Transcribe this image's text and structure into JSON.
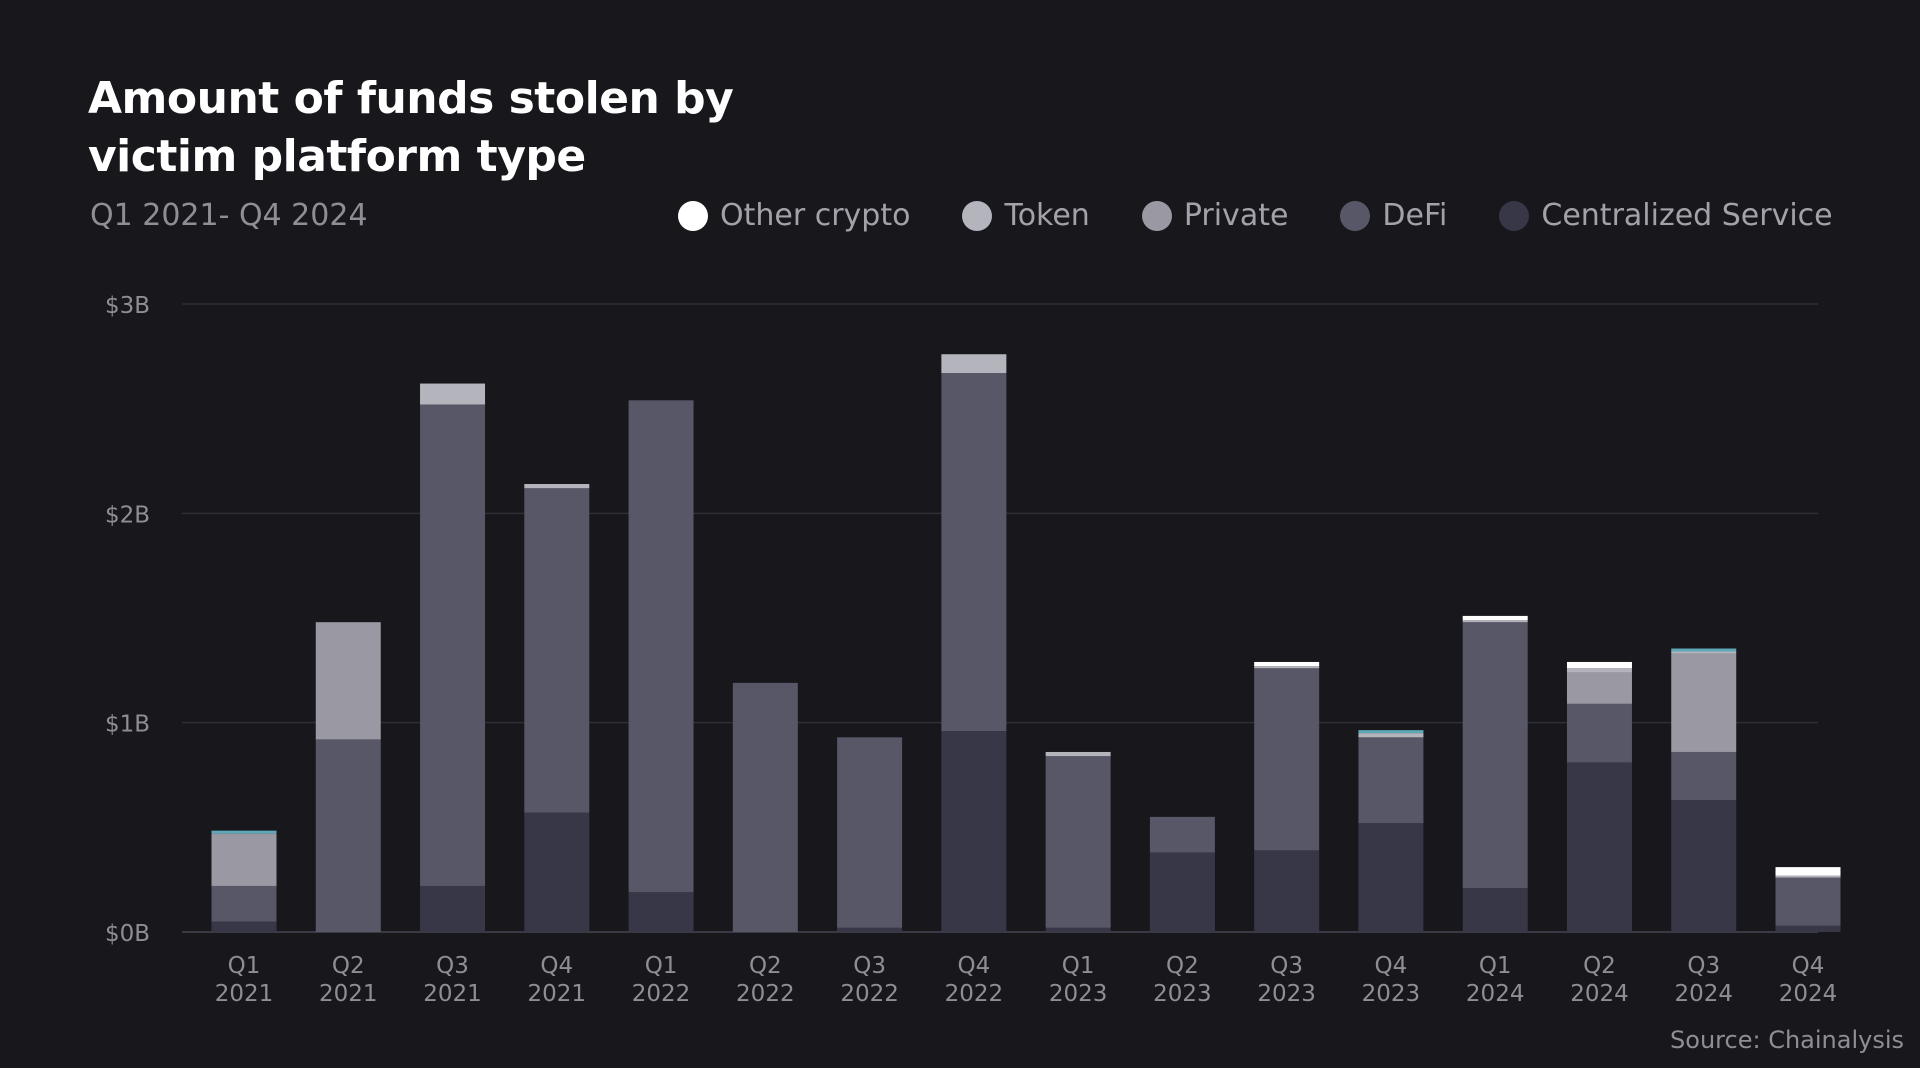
{
  "header": {
    "title": "Amount of funds stolen by victim platform type",
    "subtitle": "Q1 2021- Q4 2024"
  },
  "legend": [
    {
      "label": "Other crypto",
      "color": "#ffffff"
    },
    {
      "label": "Token",
      "color": "#b4b4bd"
    },
    {
      "label": "Private",
      "color": "#9a99a3"
    },
    {
      "label": "DeFi",
      "color": "#575767"
    },
    {
      "label": "Centralized Service",
      "color": "#383747"
    }
  ],
  "source": "Source: Chainalysis",
  "chart_data": {
    "type": "bar",
    "stacked": true,
    "categories": [
      [
        "Q1",
        "2021"
      ],
      [
        "Q2",
        "2021"
      ],
      [
        "Q3",
        "2021"
      ],
      [
        "Q4",
        "2021"
      ],
      [
        "Q1",
        "2022"
      ],
      [
        "Q2",
        "2022"
      ],
      [
        "Q3",
        "2022"
      ],
      [
        "Q4",
        "2022"
      ],
      [
        "Q1",
        "2023"
      ],
      [
        "Q2",
        "2023"
      ],
      [
        "Q3",
        "2023"
      ],
      [
        "Q4",
        "2023"
      ],
      [
        "Q1",
        "2024"
      ],
      [
        "Q2",
        "2024"
      ],
      [
        "Q3",
        "2024"
      ],
      [
        "Q4",
        "2024"
      ]
    ],
    "ylim": [
      0,
      3
    ],
    "yticks": [
      0,
      1,
      2,
      3
    ],
    "ytick_labels": [
      "$0B",
      "$1B",
      "$2B",
      "$3B"
    ],
    "grid": true,
    "legend_position": "top-right",
    "accent_color": "#5fa8b8",
    "series": [
      {
        "name": "Centralized Service",
        "color": "#383747",
        "values": [
          0.05,
          0,
          0.22,
          0.57,
          0.19,
          0,
          0.02,
          0.96,
          0.02,
          0.38,
          0.39,
          0.52,
          0.21,
          0.81,
          0.63,
          0.03
        ]
      },
      {
        "name": "DeFi",
        "color": "#575767",
        "values": [
          0.17,
          0.92,
          2.3,
          1.55,
          2.35,
          1.19,
          0.91,
          1.71,
          0.82,
          0.17,
          0.87,
          0.41,
          1.27,
          0.28,
          0.23,
          0.23
        ]
      },
      {
        "name": "Private",
        "color": "#9a99a3",
        "values": [
          0.25,
          0.56,
          0,
          0,
          0,
          0,
          0,
          0,
          0,
          0,
          0,
          0,
          0,
          0.15,
          0.47,
          0
        ]
      },
      {
        "name": "Token",
        "color": "#b4b4bd",
        "values": [
          0,
          0,
          0.1,
          0.02,
          0,
          0,
          0,
          0.09,
          0.02,
          0,
          0.01,
          0.02,
          0.01,
          0.02,
          0.01,
          0.01
        ]
      },
      {
        "name": "Other crypto",
        "color": "#ffffff",
        "values": [
          0,
          0,
          0,
          0,
          0,
          0,
          0,
          0,
          0,
          0,
          0.02,
          0,
          0.02,
          0.03,
          0,
          0.04
        ]
      }
    ]
  }
}
